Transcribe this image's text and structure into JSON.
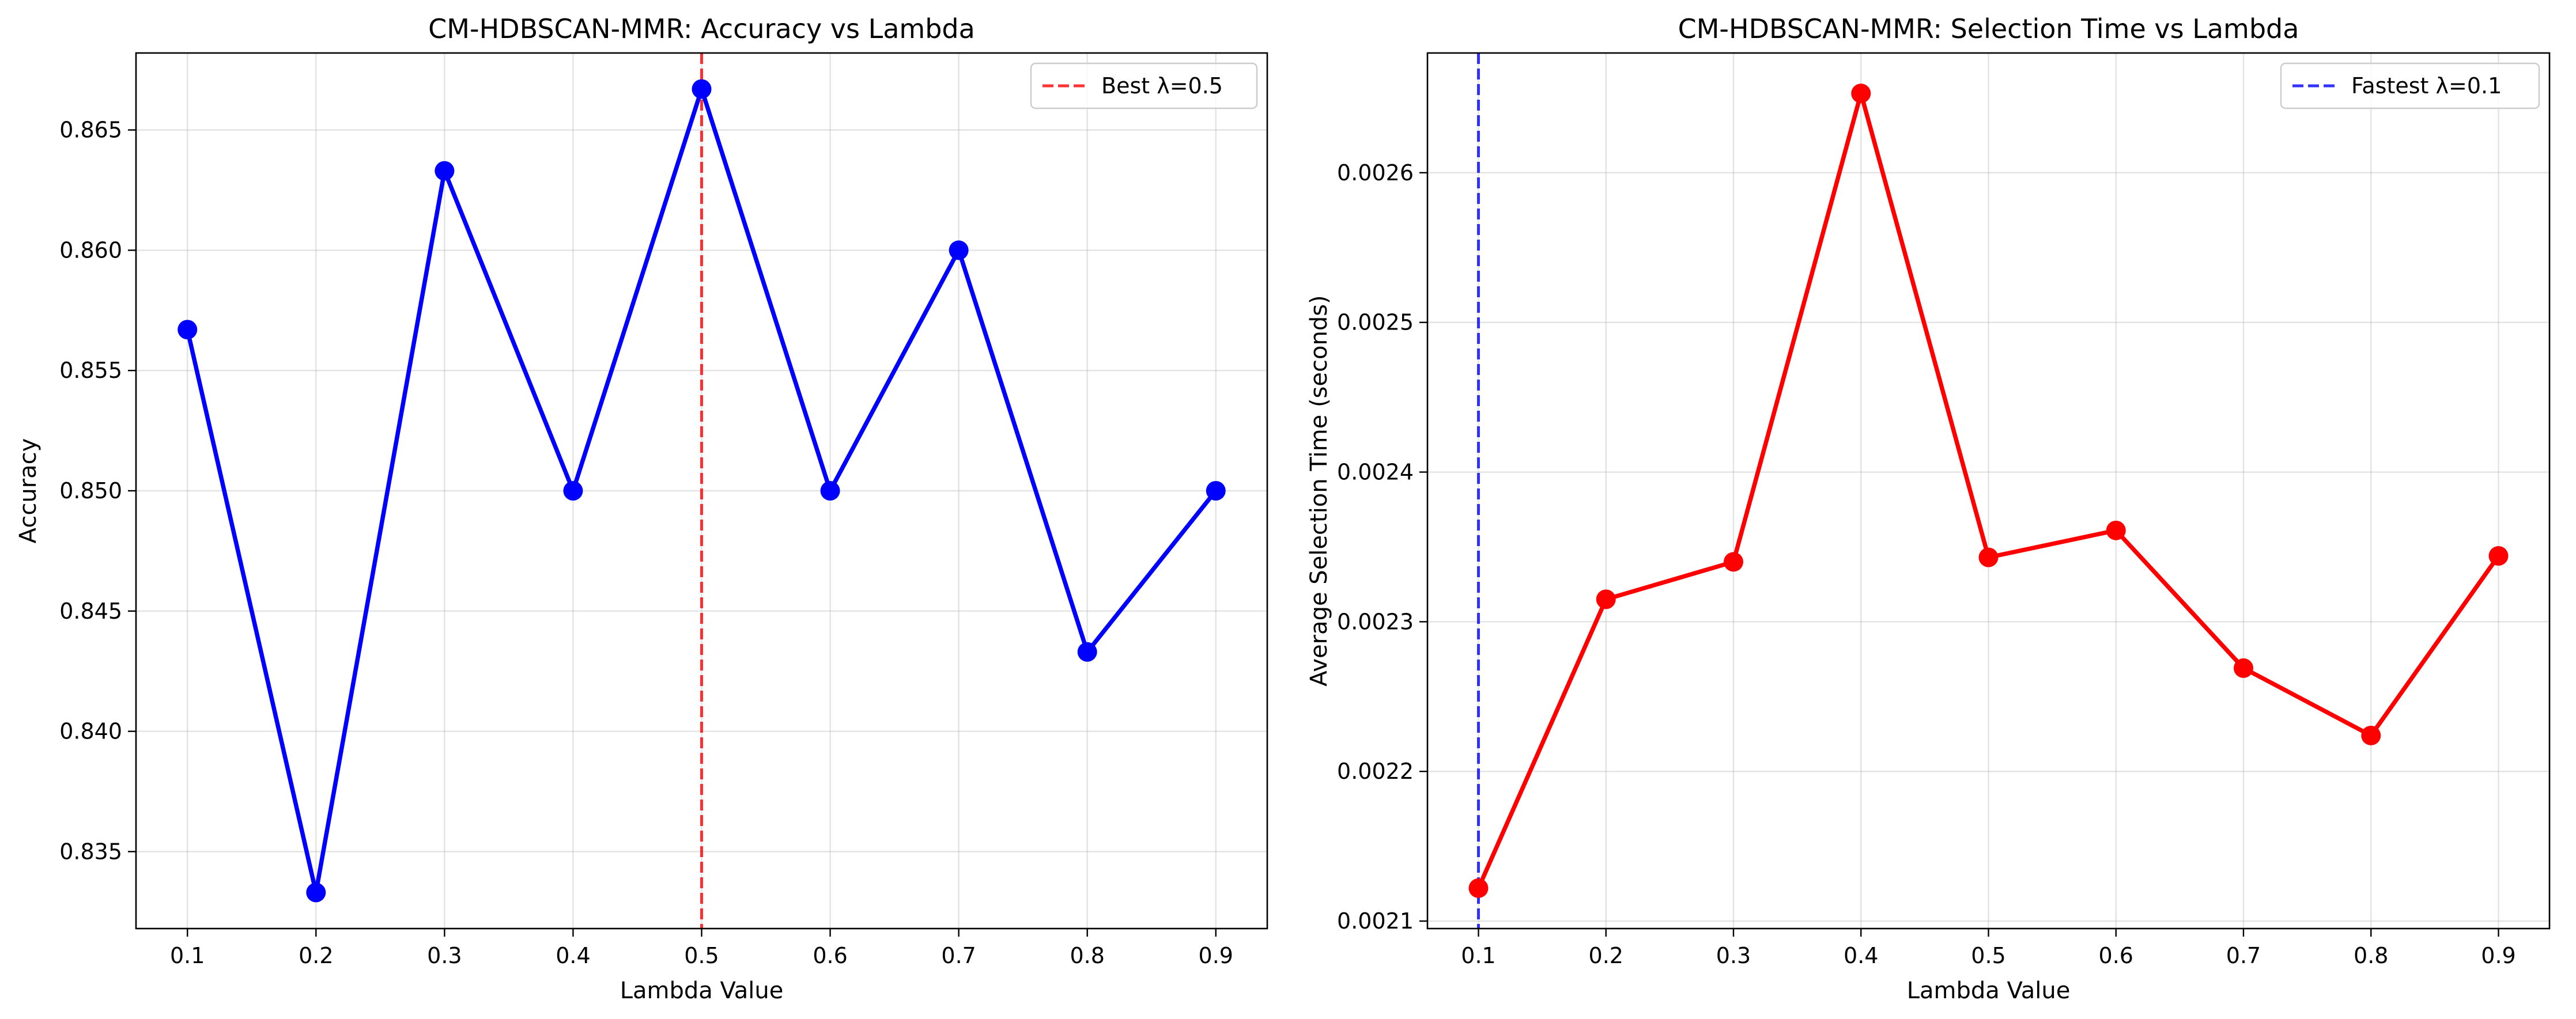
{
  "chart_data": [
    {
      "type": "line",
      "title": "CM-HDBSCAN-MMR: Accuracy vs Lambda",
      "xlabel": "Lambda Value",
      "ylabel": "Accuracy",
      "x": [
        0.1,
        0.2,
        0.3,
        0.4,
        0.5,
        0.6,
        0.7,
        0.8,
        0.9
      ],
      "xticks": [
        "0.1",
        "0.2",
        "0.3",
        "0.4",
        "0.5",
        "0.6",
        "0.7",
        "0.8",
        "0.9"
      ],
      "yticks": [
        "0.835",
        "0.840",
        "0.845",
        "0.850",
        "0.855",
        "0.860",
        "0.865"
      ],
      "xlim": [
        0.06,
        0.94
      ],
      "ylim": [
        0.8318,
        0.8682
      ],
      "grid": true,
      "legend_position": "top-right",
      "series": [
        {
          "values": [
            0.8567,
            0.8333,
            0.8633,
            0.85,
            0.8667,
            0.85,
            0.86,
            0.8433,
            0.85
          ],
          "color": "#0000ff",
          "marker": "circle"
        }
      ],
      "reference_line": {
        "x": 0.5,
        "label": "Best λ=0.5",
        "color": "#ff0000",
        "style": "dashed"
      }
    },
    {
      "type": "line",
      "title": "CM-HDBSCAN-MMR: Selection Time vs Lambda",
      "xlabel": "Lambda Value",
      "ylabel": "Average Selection Time (seconds)",
      "x": [
        0.1,
        0.2,
        0.3,
        0.4,
        0.5,
        0.6,
        0.7,
        0.8,
        0.9
      ],
      "xticks": [
        "0.1",
        "0.2",
        "0.3",
        "0.4",
        "0.5",
        "0.6",
        "0.7",
        "0.8",
        "0.9"
      ],
      "yticks": [
        "0.0021",
        "0.0022",
        "0.0023",
        "0.0024",
        "0.0025",
        "0.0026"
      ],
      "xlim": [
        0.06,
        0.94
      ],
      "ylim": [
        0.002095,
        0.00268
      ],
      "grid": true,
      "legend_position": "top-right",
      "series": [
        {
          "values": [
            0.002122,
            0.002315,
            0.00234,
            0.002653,
            0.002343,
            0.002361,
            0.002269,
            0.002224,
            0.002344
          ],
          "color": "#ff0000",
          "marker": "circle"
        }
      ],
      "reference_line": {
        "x": 0.1,
        "label": "Fastest λ=0.1",
        "color": "#0000ff",
        "style": "dashed"
      }
    }
  ]
}
